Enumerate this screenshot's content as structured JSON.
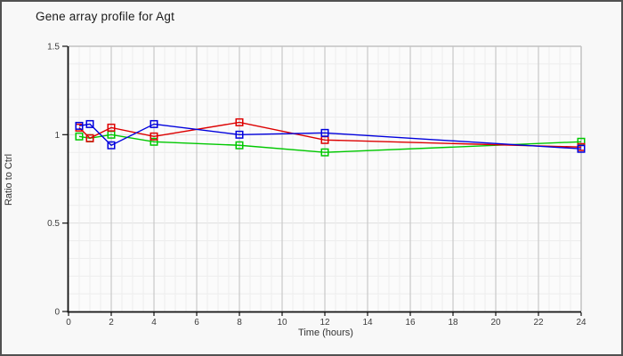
{
  "window": {
    "background": "#f8f8f8",
    "border_color": "#515151",
    "plot_background": "#fbfbfb"
  },
  "header": {
    "title": "Gene array profile for Agt"
  },
  "chart_data": {
    "type": "line",
    "title": "Gene array profile for Agt",
    "xlabel": "Time (hours)",
    "ylabel": "Ratio to Ctrl",
    "xlim": [
      0,
      24
    ],
    "ylim": [
      0,
      1.5
    ],
    "x_ticks": [
      0,
      2,
      4,
      6,
      8,
      10,
      12,
      14,
      16,
      18,
      20,
      22,
      24
    ],
    "x_tick_labels": [
      "0",
      "2",
      "4",
      "6",
      "8",
      "10",
      "12",
      "14",
      "16",
      "18",
      "20",
      "22",
      "24"
    ],
    "y_ticks": [
      0,
      0.5,
      1,
      1.5
    ],
    "y_tick_labels": [
      "0",
      "0.5",
      "1",
      "1.5"
    ],
    "x_minor_step": 0.5,
    "y_minor_step": 0.1,
    "grid": {
      "major_v_color": "#c9c9c9",
      "minor_color": "#ededed",
      "major_h_color": "#dedede",
      "border_color": "#c2c2c2",
      "axis_color": "#111111"
    },
    "marker": "square",
    "legend": null,
    "x": [
      0.5,
      1,
      2,
      4,
      8,
      12,
      24
    ],
    "series": [
      {
        "name": "series-green",
        "color": "#00c800",
        "values": [
          0.99,
          0.98,
          1.0,
          0.96,
          0.94,
          0.9,
          0.96
        ]
      },
      {
        "name": "series-red",
        "color": "#dd0000",
        "values": [
          1.04,
          0.98,
          1.04,
          0.99,
          1.07,
          0.97,
          0.93
        ]
      },
      {
        "name": "series-blue",
        "color": "#0000dd",
        "values": [
          1.05,
          1.06,
          0.94,
          1.06,
          1.0,
          1.01,
          0.92
        ]
      }
    ]
  }
}
